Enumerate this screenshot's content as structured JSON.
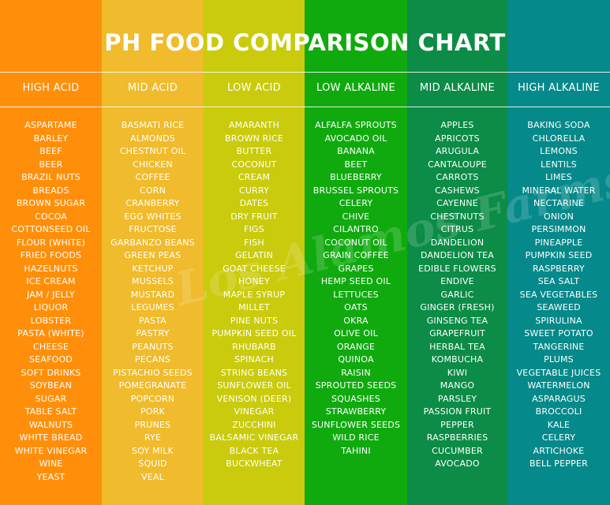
{
  "chart_data": {
    "type": "table",
    "title": "PH FOOD COMPARISON CHART",
    "columns": [
      {
        "heading": "HIGH ACID",
        "color": "#FF8F0A",
        "items": [
          "ASPARTAME",
          "BARLEY",
          "BEEF",
          "BEER",
          "BRAZIL NUTS",
          "BREADS",
          "BROWN SUGAR",
          "COCOA",
          "COTTONSEED OIL",
          "FLOUR (WHITE)",
          "FRIED FOODS",
          "HAZELNUTS",
          "ICE CREAM",
          "JAM / JELLY",
          "LIQUOR",
          "LOBSTER",
          "PASTA (WHITE)",
          "CHEESE",
          "SEAFOOD",
          "SOFT DRINKS",
          "SOYBEAN",
          "SUGAR",
          "TABLE SALT",
          "WALNUTS",
          "WHITE BREAD",
          "WHITE VINEGAR",
          "WINE",
          "YEAST"
        ]
      },
      {
        "heading": "MID ACID",
        "color": "#F0BB2C",
        "items": [
          "BASMATI RICE",
          "ALMONDS",
          "CHESTNUT OIL",
          "CHICKEN",
          "COFFEE",
          "CORN",
          "CRANBERRY",
          "EGG WHITES",
          "FRUCTOSE",
          "GARBANZO BEANS",
          "GREEN PEAS",
          "KETCHUP",
          "MUSSELS",
          "MUSTARD",
          "LEGUMES",
          "PASTA",
          "PASTRY",
          "PEANUTS",
          "PECANS",
          "PISTACHIO SEEDS",
          "POMEGRANATE",
          "POPCORN",
          "PORK",
          "PRUNES",
          "RYE",
          "SOY MILK",
          "SQUID",
          "VEAL"
        ]
      },
      {
        "heading": "LOW ACID",
        "color": "#CACB0C",
        "items": [
          "AMARANTH",
          "BROWN RICE",
          "BUTTER",
          "COCONUT",
          "CREAM",
          "CURRY",
          "DATES",
          "DRY FRUIT",
          "FIGS",
          "FISH",
          "GELATIN",
          "GOAT CHEESE",
          "HONEY",
          "MAPLE SYRUP",
          "MILLET",
          "PINE NUTS",
          "PUMPKIN SEED OIL",
          "RHUBARB",
          "SPINACH",
          "STRING BEANS",
          "SUNFLOWER OIL",
          "VENISON (DEER)",
          "VINEGAR",
          "ZUCCHINI",
          "BALSAMIC VINEGAR",
          "BLACK TEA",
          "BUCKWHEAT"
        ]
      },
      {
        "heading": "LOW ALKALINE",
        "color": "#10AA0F",
        "items": [
          "ALFALFA SPROUTS",
          "AVOCADO OIL",
          "BANANA",
          "BEET",
          "BLUEBERRY",
          "BRUSSEL SPROUTS",
          "CELERY",
          "CHIVE",
          "CILANTRO",
          "COCONUT OIL",
          "GRAIN COFFEE",
          "GRAPES",
          "HEMP SEED OIL",
          "LETTUCES",
          "OATS",
          "OKRA",
          "OLIVE OIL",
          "ORANGE",
          "QUINOA",
          "RAISIN",
          "SPROUTED SEEDS",
          "SQUASHES",
          "STRAWBERRY",
          "SUNFLOWER SEEDS",
          "WILD RICE",
          "TAHINI"
        ]
      },
      {
        "heading": "MID ALKALINE",
        "color": "#0C8C46",
        "items": [
          "APPLES",
          "APRICOTS",
          "ARUGULA",
          "CANTALOUPE",
          "CARROTS",
          "CASHEWS",
          "CAYENNE",
          "CHESTNUTS",
          "CITRUS",
          "DANDELION",
          "DANDELION TEA",
          "EDIBLE FLOWERS",
          "ENDIVE",
          "GARLIC",
          "GINGER (FRESH)",
          "GINSENG TEA",
          "GRAPEFRUIT",
          "HERBAL TEA",
          "KOMBUCHA",
          "KIWI",
          "MANGO",
          "PARSLEY",
          "PASSION FRUIT",
          "PEPPER",
          "RASPBERRIES",
          "CUCUMBER",
          "AVOCADO"
        ]
      },
      {
        "heading": "HIGH ALKALINE",
        "color": "#06898A",
        "items": [
          "BAKING SODA",
          "CHLORELLA",
          "LEMONS",
          "LENTILS",
          "LIMES",
          "MINERAL WATER",
          "NECTARINE",
          "ONION",
          "PERSIMMON",
          "PINEAPPLE",
          "PUMPKIN SEED",
          "RASPBERRY",
          "SEA SALT",
          "SEA VEGETABLES",
          "SEAWEED",
          "SPIRULINA",
          "SWEET POTATO",
          "TANGERINE",
          "PLUMS",
          "VEGETABLE JUICES",
          "WATERMELON",
          "ASPARAGUS",
          "BROCCOLI",
          "KALE",
          "CELERY",
          "ARTICHOKE",
          "BELL PEPPER"
        ]
      }
    ]
  },
  "watermark": "Los Alamos Farms"
}
